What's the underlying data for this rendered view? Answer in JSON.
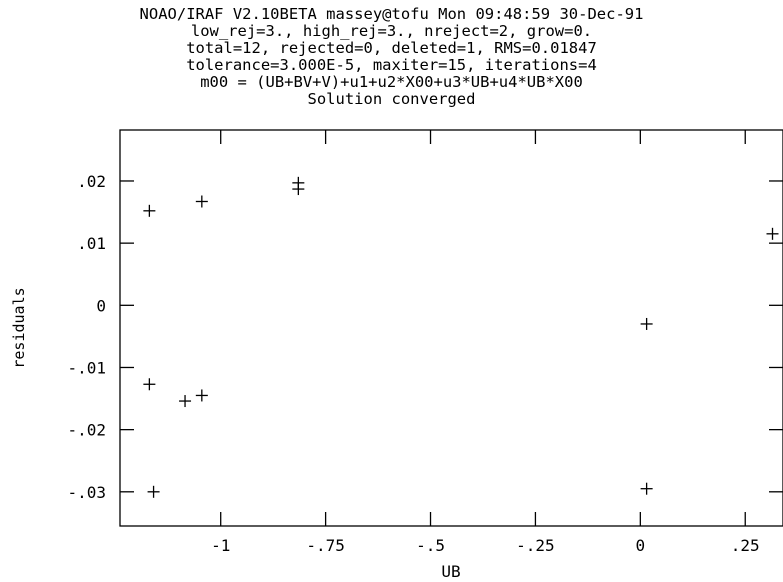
{
  "header": {
    "lines": [
      "NOAO/IRAF V2.10BETA massey@tofu Mon 09:48:59 30-Dec-91",
      "low_rej=3., high_rej=3., nreject=2, grow=0.",
      "total=12, rejected=0, deleted=1, RMS=0.01847",
      "tolerance=3.000E-5, maxiter=15, iterations=4",
      "m00 = (UB+BV+V)+u1+u2*X00+u3*UB+u4*UB*X00",
      "Solution converged"
    ]
  },
  "chart_data": {
    "type": "scatter",
    "xlabel": "UB",
    "ylabel": "residuals",
    "xlim": [
      -1.24,
      0.34
    ],
    "ylim": [
      -0.0355,
      0.0282
    ],
    "xticks": [
      -1,
      -0.75,
      -0.5,
      -0.25,
      0,
      0.25
    ],
    "xtick_labels": [
      "-1",
      "-.75",
      "-.5",
      "-.25",
      "0",
      ".25"
    ],
    "yticks": [
      -0.03,
      -0.02,
      -0.01,
      0,
      0.01,
      0.02
    ],
    "ytick_labels": [
      "-.03",
      "-.02",
      "-.01",
      "0",
      ".01",
      ".02"
    ],
    "marker": "+",
    "grid": false,
    "points": [
      {
        "x": -1.17,
        "y": 0.0152
      },
      {
        "x": -1.045,
        "y": 0.0167
      },
      {
        "x": -0.815,
        "y": 0.0197
      },
      {
        "x": -0.815,
        "y": 0.0187
      },
      {
        "x": 0.315,
        "y": 0.0115
      },
      {
        "x": -1.17,
        "y": -0.0127
      },
      {
        "x": -1.085,
        "y": -0.0154
      },
      {
        "x": -1.045,
        "y": -0.0145
      },
      {
        "x": 0.015,
        "y": -0.003
      },
      {
        "x": -1.16,
        "y": -0.03
      },
      {
        "x": 0.015,
        "y": -0.0295
      }
    ]
  }
}
